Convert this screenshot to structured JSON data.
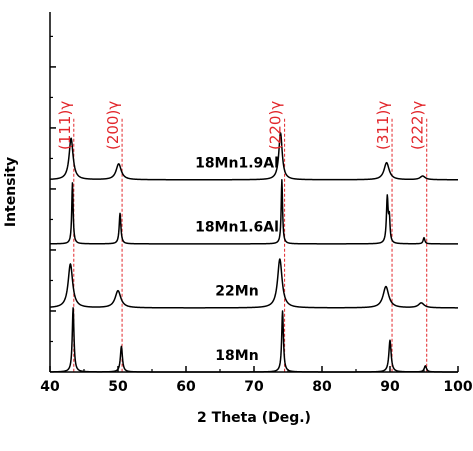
{
  "chart_data": {
    "type": "line",
    "title": "",
    "xlabel": "2 Theta (Deg.)",
    "ylabel": "Intensity",
    "xlim": [
      40,
      100
    ],
    "ylim": [
      0,
      5.9
    ],
    "xticks": [
      "40",
      "50",
      "60",
      "70",
      "80",
      "90",
      "100"
    ],
    "y_tick_labels": "none",
    "grid": false,
    "legend": "none",
    "colors": {
      "trace": "#000000",
      "peak_marker": "#e2262b",
      "axis": "#000000"
    },
    "reference_peaks": [
      {
        "label": "(111)γ",
        "x": 43.5
      },
      {
        "label": "(200)γ",
        "x": 50.6
      },
      {
        "label": "(220)γ",
        "x": 74.5
      },
      {
        "label": "(311)γ",
        "x": 90.3
      },
      {
        "label": "(222)γ",
        "x": 95.4
      }
    ],
    "series": [
      {
        "name": "18Mn",
        "baseline": 0.0,
        "peaks": [
          {
            "x": 43.4,
            "height": 1.05,
            "width": 0.15
          },
          {
            "x": 50.5,
            "height": 0.42,
            "width": 0.18
          },
          {
            "x": 74.2,
            "height": 1.0,
            "width": 0.15
          },
          {
            "x": 90.0,
            "height": 0.52,
            "width": 0.2
          },
          {
            "x": 95.2,
            "height": 0.1,
            "width": 0.2
          }
        ]
      },
      {
        "name": "22Mn",
        "baseline": 1.05,
        "peaks": [
          {
            "x": 43.0,
            "height": 0.72,
            "width": 0.4
          },
          {
            "x": 50.0,
            "height": 0.28,
            "width": 0.5
          },
          {
            "x": 73.8,
            "height": 0.8,
            "width": 0.4
          },
          {
            "x": 89.4,
            "height": 0.35,
            "width": 0.5
          },
          {
            "x": 94.6,
            "height": 0.08,
            "width": 0.5
          }
        ]
      },
      {
        "name": "18Mn1.6Al",
        "baseline": 2.1,
        "peaks": [
          {
            "x": 43.3,
            "height": 1.0,
            "width": 0.12
          },
          {
            "x": 50.3,
            "height": 0.5,
            "width": 0.15
          },
          {
            "x": 74.1,
            "height": 1.05,
            "width": 0.12
          },
          {
            "x": 89.6,
            "height": 0.75,
            "width": 0.15
          },
          {
            "x": 89.9,
            "height": 0.38,
            "width": 0.12
          },
          {
            "x": 95.0,
            "height": 0.1,
            "width": 0.15
          }
        ]
      },
      {
        "name": "18Mn1.9Al",
        "baseline": 3.15,
        "peaks": [
          {
            "x": 43.1,
            "height": 0.68,
            "width": 0.35
          },
          {
            "x": 50.1,
            "height": 0.26,
            "width": 0.45
          },
          {
            "x": 73.9,
            "height": 0.77,
            "width": 0.3
          },
          {
            "x": 89.5,
            "height": 0.28,
            "width": 0.45
          },
          {
            "x": 94.8,
            "height": 0.06,
            "width": 0.45
          }
        ]
      }
    ]
  }
}
